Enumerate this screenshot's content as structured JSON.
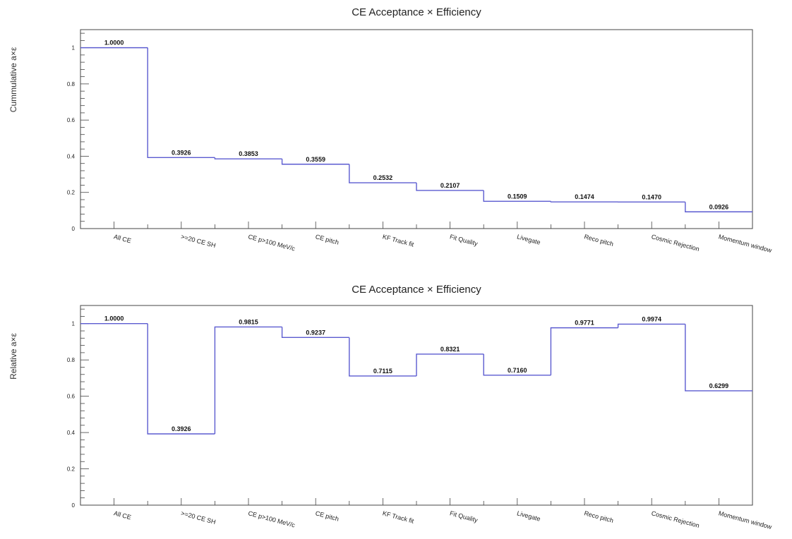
{
  "chart_data": [
    {
      "type": "bar",
      "title": "CE Acceptance × Efficiency",
      "xlabel": "",
      "ylabel": "Cummulative a×ε",
      "ylim": [
        0,
        1.1
      ],
      "yticks": [
        "0",
        "0.2",
        "0.4",
        "0.6",
        "0.8",
        "1"
      ],
      "categories": [
        "All CE",
        ">=20 CE SH",
        "CE p>100 MeV/c",
        "CE pitch",
        "KF Track fit",
        "Fit Quality",
        "Livegate",
        "Reco pitch",
        "Cosmic Rejection",
        "Momentum window"
      ],
      "values": [
        1.0,
        0.3926,
        0.3853,
        0.3559,
        0.2532,
        0.2107,
        0.1509,
        0.1474,
        0.147,
        0.0926
      ],
      "value_labels": [
        "1.0000",
        "0.3926",
        "0.3853",
        "0.3559",
        "0.2532",
        "0.2107",
        "0.1509",
        "0.1474",
        "0.1470",
        "0.0926"
      ],
      "line_color": "#5b5bd0",
      "grid": false
    },
    {
      "type": "bar",
      "title": "CE Acceptance × Efficiency",
      "xlabel": "",
      "ylabel": "Relative a×ε",
      "ylim": [
        0,
        1.1
      ],
      "yticks": [
        "0",
        "0.2",
        "0.4",
        "0.6",
        "0.8",
        "1"
      ],
      "categories": [
        "All CE",
        ">=20 CE SH",
        "CE p>100 MeV/c",
        "CE pitch",
        "KF Track fit",
        "Fit Quality",
        "Livegate",
        "Reco pitch",
        "Cosmic Rejection",
        "Momentum window"
      ],
      "values": [
        1.0,
        0.3926,
        0.9815,
        0.9237,
        0.7115,
        0.8321,
        0.716,
        0.9771,
        0.9974,
        0.6299
      ],
      "value_labels": [
        "1.0000",
        "0.3926",
        "0.9815",
        "0.9237",
        "0.7115",
        "0.8321",
        "0.7160",
        "0.9771",
        "0.9974",
        "0.6299"
      ],
      "line_color": "#5b5bd0",
      "grid": false
    }
  ]
}
